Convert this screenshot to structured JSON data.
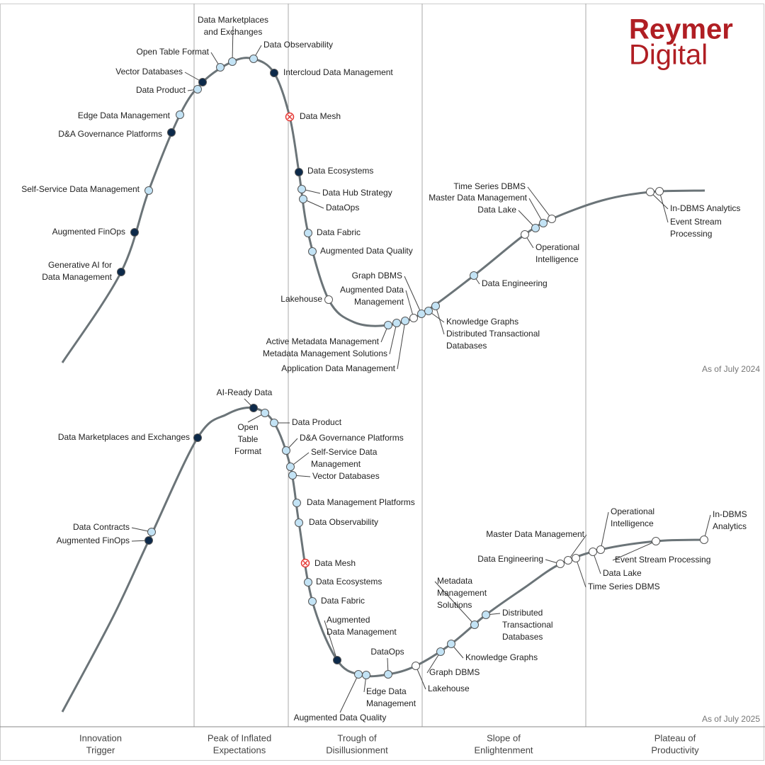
{
  "brand": {
    "line1": "Reymer",
    "line2": "Digital"
  },
  "phases": [
    [
      "Innovation",
      "Trigger"
    ],
    [
      "Peak of Inflated",
      "Expectations"
    ],
    [
      "Trough of",
      "Disillusionment"
    ],
    [
      "Slope of",
      "Enlightenment"
    ],
    [
      "Plateau of",
      "Productivity"
    ]
  ],
  "charts": [
    {
      "date": "As of July 2024",
      "nodes": [
        {
          "label": [
            "Generative AI for",
            "Data Management"
          ],
          "color": "#0d2a4a"
        },
        {
          "label": [
            "Augmented FinOps"
          ],
          "color": "#0d2a4a"
        },
        {
          "label": [
            "Self-Service Data Management"
          ],
          "color": "#c3e3f5"
        },
        {
          "label": [
            "D&A Governance Platforms"
          ],
          "color": "#0d2a4a"
        },
        {
          "label": [
            "Edge Data Management"
          ],
          "color": "#c3e3f5"
        },
        {
          "label": [
            "Data Product"
          ],
          "color": "#c3e3f5"
        },
        {
          "label": [
            "Vector Databases"
          ],
          "color": "#0d2a4a"
        },
        {
          "label": [
            "Open Table Format"
          ],
          "color": "#c3e3f5"
        },
        {
          "label": [
            "Data Marketplaces",
            "and Exchanges"
          ],
          "color": "#c3e3f5"
        },
        {
          "label": [
            "Data Observability"
          ],
          "color": "#c3e3f5"
        },
        {
          "label": [
            "Intercloud Data Management"
          ],
          "color": "#0d2a4a"
        },
        {
          "label": [
            "Data Mesh"
          ],
          "color": "#e53935",
          "symbol": "cross"
        },
        {
          "label": [
            "Data Ecosystems"
          ],
          "color": "#0d2a4a"
        },
        {
          "label": [
            "Data Hub Strategy"
          ],
          "color": "#c3e3f5"
        },
        {
          "label": [
            "DataOps"
          ],
          "color": "#c3e3f5"
        },
        {
          "label": [
            "Data Fabric"
          ],
          "color": "#c3e3f5"
        },
        {
          "label": [
            "Augmented Data Quality"
          ],
          "color": "#c3e3f5"
        },
        {
          "label": [
            "Lakehouse"
          ],
          "color": "#ffffff"
        },
        {
          "label": [
            "Active Metadata Management"
          ],
          "color": "#c3e3f5"
        },
        {
          "label": [
            "Metadata Management Solutions"
          ],
          "color": "#c3e3f5"
        },
        {
          "label": [
            "Application Data Management"
          ],
          "color": "#c3e3f5"
        },
        {
          "label": [
            "Augmented Data",
            "Management"
          ],
          "color": "#ffffff"
        },
        {
          "label": [
            "Graph DBMS"
          ],
          "color": "#c3e3f5"
        },
        {
          "label": [
            "Knowledge Graphs"
          ],
          "color": "#c3e3f5"
        },
        {
          "label": [
            "Distributed Transactional",
            "Databases"
          ],
          "color": "#c3e3f5"
        },
        {
          "label": [
            "Data Engineering"
          ],
          "color": "#c3e3f5"
        },
        {
          "label": [
            "Operational",
            "Intelligence"
          ],
          "color": "#ffffff"
        },
        {
          "label": [
            "Data Lake"
          ],
          "color": "#c3e3f5"
        },
        {
          "label": [
            "Master Data Management"
          ],
          "color": "#c3e3f5"
        },
        {
          "label": [
            "Time Series DBMS"
          ],
          "color": "#ffffff"
        },
        {
          "label": [
            "In-DBMS Analytics"
          ],
          "color": "#ffffff"
        },
        {
          "label": [
            "Event Stream",
            "Processing"
          ],
          "color": "#ffffff"
        }
      ]
    },
    {
      "date": "As of July 2025",
      "nodes": [
        {
          "label": [
            "Data Marketplaces and Exchanges"
          ],
          "color": "#0d2a4a"
        },
        {
          "label": [
            "Data Contracts"
          ],
          "color": "#c3e3f5"
        },
        {
          "label": [
            "Augmented FinOps"
          ],
          "color": "#0d2a4a"
        },
        {
          "label": [
            "AI-Ready Data"
          ],
          "color": "#0d2a4a"
        },
        {
          "label": [
            "Open",
            "Table",
            "Format"
          ],
          "color": "#c3e3f5"
        },
        {
          "label": [
            "Data Product"
          ],
          "color": "#c3e3f5"
        },
        {
          "label": [
            "D&A Governance Platforms"
          ],
          "color": "#c3e3f5"
        },
        {
          "label": [
            "Self-Service Data",
            "Management"
          ],
          "color": "#c3e3f5"
        },
        {
          "label": [
            "Vector Databases"
          ],
          "color": "#c3e3f5"
        },
        {
          "label": [
            "Data Management Platforms"
          ],
          "color": "#c3e3f5"
        },
        {
          "label": [
            "Data Observability"
          ],
          "color": "#c3e3f5"
        },
        {
          "label": [
            "Data Mesh"
          ],
          "color": "#e53935",
          "symbol": "cross"
        },
        {
          "label": [
            "Data Ecosystems"
          ],
          "color": "#c3e3f5"
        },
        {
          "label": [
            "Data Fabric"
          ],
          "color": "#c3e3f5"
        },
        {
          "label": [
            "Augmented",
            "Data Management"
          ],
          "color": "#0d2a4a"
        },
        {
          "label": [
            "Augmented Data Quality"
          ],
          "color": "#c3e3f5"
        },
        {
          "label": [
            "Edge Data",
            "Management"
          ],
          "color": "#c3e3f5"
        },
        {
          "label": [
            "DataOps"
          ],
          "color": "#c3e3f5"
        },
        {
          "label": [
            "Lakehouse"
          ],
          "color": "#ffffff"
        },
        {
          "label": [
            "Graph DBMS"
          ],
          "color": "#c3e3f5"
        },
        {
          "label": [
            "Knowledge Graphs"
          ],
          "color": "#c3e3f5"
        },
        {
          "label": [
            "Metadata",
            "Management",
            "Solutions"
          ],
          "color": "#c3e3f5"
        },
        {
          "label": [
            "Distributed",
            "Transactional",
            "Databases"
          ],
          "color": "#c3e3f5"
        },
        {
          "label": [
            "Data Engineering"
          ],
          "color": "#ffffff"
        },
        {
          "label": [
            "Master Data Management"
          ],
          "color": "#ffffff"
        },
        {
          "label": [
            "Time Series DBMS"
          ],
          "color": "#ffffff"
        },
        {
          "label": [
            "Data Lake"
          ],
          "color": "#ffffff"
        },
        {
          "label": [
            "Operational",
            "Intelligence"
          ],
          "color": "#ffffff"
        },
        {
          "label": [
            "Event Stream Processing"
          ],
          "color": "#ffffff"
        },
        {
          "label": [
            "In-DBMS",
            "Analytics"
          ],
          "color": "#ffffff"
        }
      ]
    }
  ]
}
